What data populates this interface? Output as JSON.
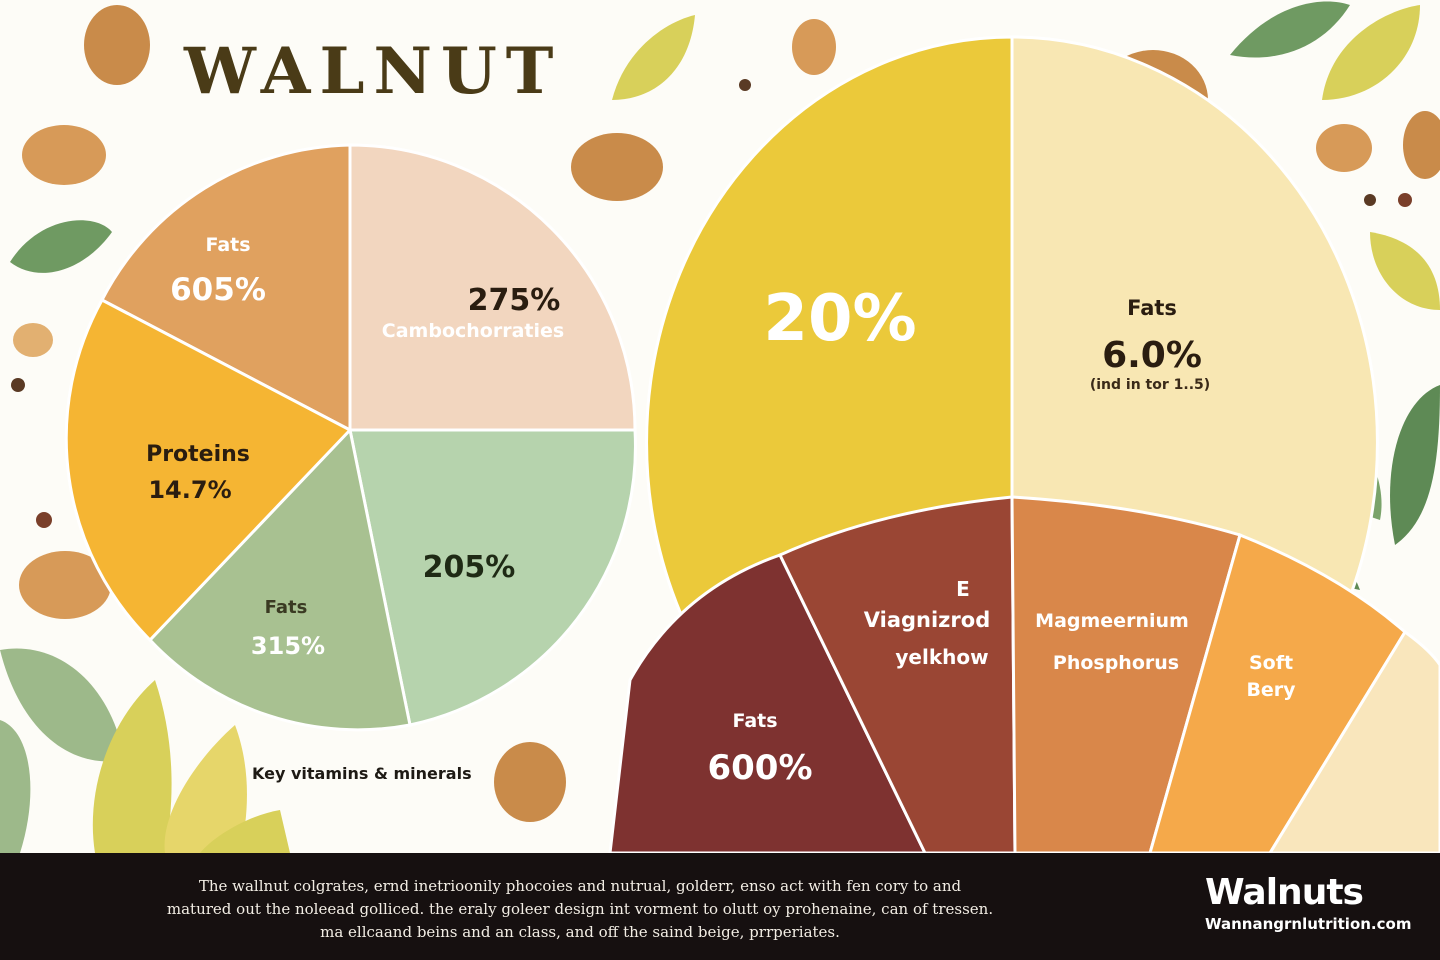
{
  "header": {
    "title": "WALNUT"
  },
  "chart_data": [
    {
      "type": "pie",
      "slices": [
        {
          "label": "Fats",
          "value_label": "605%",
          "color": "#e0a15f"
        },
        {
          "label": "Cambochorraties",
          "value_label": "275%",
          "color": "#f2d6bf"
        },
        {
          "label": "",
          "value_label": "205%",
          "color": "#b6d3ad"
        },
        {
          "label": "Fats",
          "value_label": "315%",
          "color": "#a8c191"
        },
        {
          "label": "Proteins",
          "value_label": "14.7%",
          "color": "#f5b533"
        }
      ]
    },
    {
      "type": "pie",
      "slices": [
        {
          "label": "",
          "value_label": "20%",
          "color": "#ebc93a"
        },
        {
          "label": "Fats",
          "value_label": "6.0%",
          "note": "(ind in tor 1..5)",
          "color": "#f8e7b3"
        }
      ]
    },
    {
      "type": "pie",
      "slices": [
        {
          "label": "Fats",
          "value_label": "600%",
          "color": "#7e3230"
        },
        {
          "label": "E",
          "label2": "Viagnizrod",
          "label3": "yelkhow",
          "color": "#9a4634"
        },
        {
          "label": "Magmeernium",
          "label2": "Phosphorus",
          "color": "#d9874a"
        },
        {
          "label": "Soft",
          "label2": "Bery",
          "color": "#f5a94a"
        },
        {
          "label": "",
          "color": "#f9e6bc"
        }
      ]
    }
  ],
  "caption": "Key vitamins & minerals",
  "footer": {
    "lines": [
      "The wallnut colgrates, ernd inetrioonily phocoies and nutrual, golderr, enso act with fen cory to and",
      "matured out the noleead golliced. the eraly goleer design int vorment to olutt oy prohenaine, can of tressen.",
      "ma ellcaand beins and an class, and off the saind beige, prrperiates."
    ],
    "brand": "Walnuts",
    "url": "Wannangrnlutrition.com"
  },
  "decor": {
    "leaf_colors": [
      "#6f9a62",
      "#d8d05a",
      "#9db98a",
      "#5e8a55"
    ],
    "nut_color": "#c98b4a"
  }
}
